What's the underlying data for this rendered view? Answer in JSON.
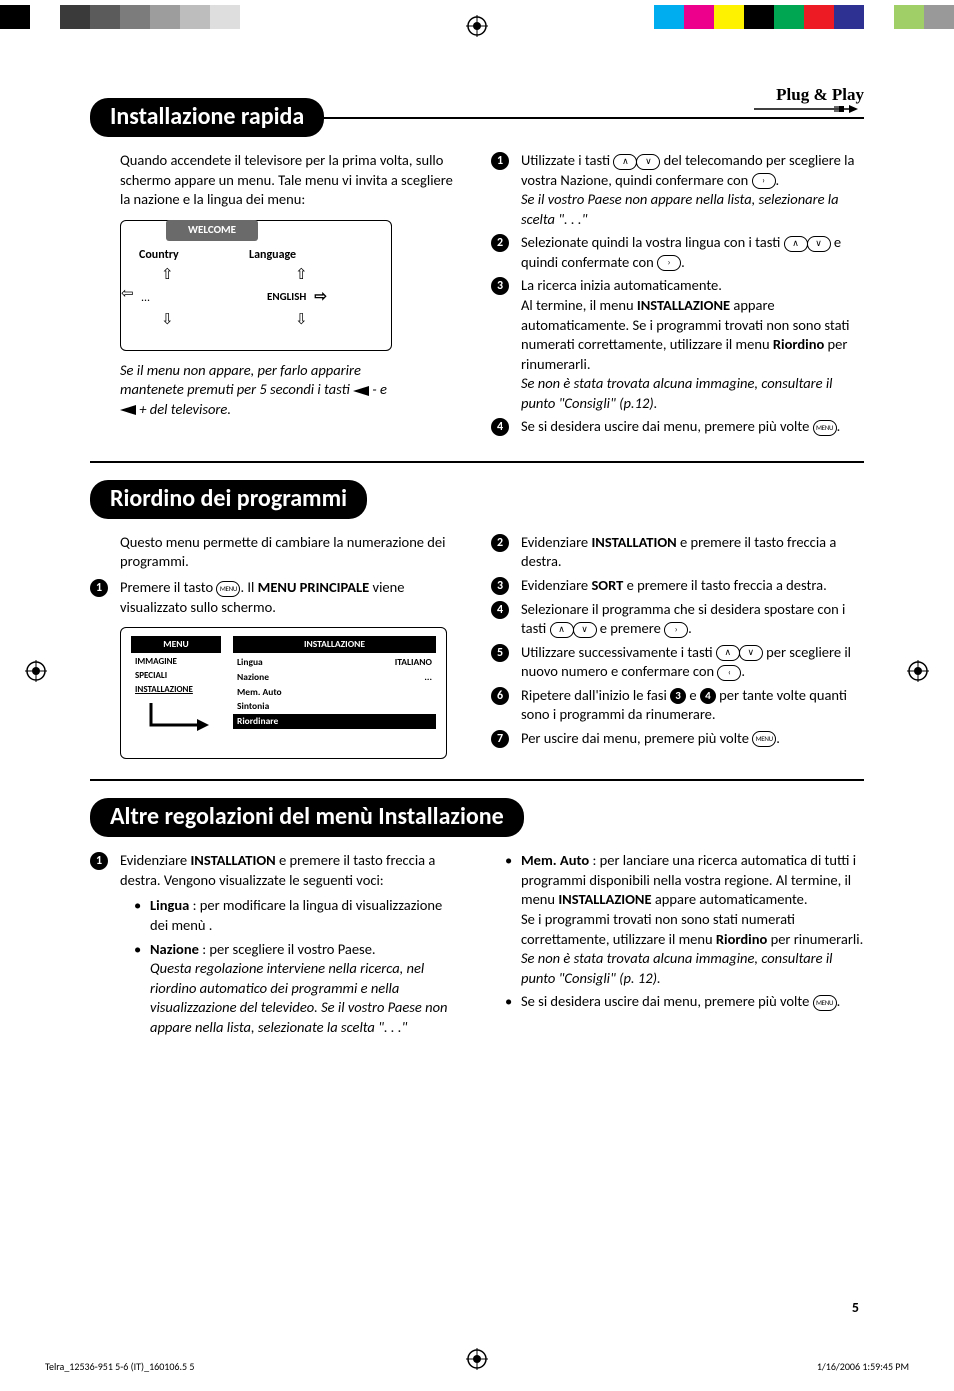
{
  "colorbar": {
    "left": [
      "#000000",
      "#ffffff",
      "#3a3a3a",
      "#5b5b5b",
      "#7c7c7c",
      "#9d9d9d",
      "#bdbdbd",
      "#dedede",
      "#ffffff",
      "#ffffff",
      "#ffffff"
    ],
    "right": [
      "#00aeef",
      "#ec008c",
      "#fff200",
      "#000000",
      "#00a651",
      "#ed1c24",
      "#2e3192",
      "#ffffff",
      "#a0cf67",
      "#999999"
    ]
  },
  "logo": {
    "text": "Plug & Play"
  },
  "sections": {
    "s1": {
      "title": "Installazione rapida"
    },
    "s2": {
      "title": "Riordino dei programmi"
    },
    "s3": {
      "title": "Altre regolazioni del menù Installazione"
    }
  },
  "s1": {
    "intro": "Quando accendete il televisore per la prima volta, sullo schermo appare un menu. Tale menu vi invita a scegliere la nazione e la lingua dei menu:",
    "tv": {
      "tab": "WELCOME",
      "country": "Country",
      "language": "Language",
      "english": "ENGLISH",
      "dots": "..."
    },
    "note_line1": "Se il menu non appare, per farlo apparire",
    "note_line2_a": "mantenete premuti per 5 secondi i tasti ",
    "note_line2_b": " - e",
    "note_line3_a": "",
    "note_line3_b": " + del televisore.",
    "r1": "Utilizzate i tasti ",
    "r1b": " del telecomando per scegliere la vostra Nazione, quindi confermare con ",
    "r1c": ".",
    "r1_note": "Se il vostro Paese non appare nella lista, selezionare la scelta \". . .\"",
    "r2a": "Selezionate quindi la vostra lingua con i tasti ",
    "r2b": " e quindi confermate con ",
    "r2c": ".",
    "r3a": "La ricerca inizia automaticamente.",
    "r3b": "Al termine, il menu ",
    "r3b_bold": "INSTALLAZIONE",
    "r3c": " appare automaticamente. Se i programmi trovati non sono stati numerati correttamente, utilizzare il menu ",
    "r3c_bold": "Riordino",
    "r3d": " per rinumerarli.",
    "r3_note": "Se non è stata trovata alcuna immagine, consultare il punto \"Consigli\" (p.12).",
    "r4": "Se si desidera uscire dai menu, premere più volte ",
    "r4b": "."
  },
  "s2": {
    "intro": "Questo menu permette di cambiare la numerazione dei programmi.",
    "l1a": "Premere il tasto ",
    "l1b": ". Il ",
    "l1_bold": "MENU PRINCIPALE",
    "l1c": " viene visualizzato sullo schermo.",
    "menubox": {
      "left_hdr": "MENU",
      "left_items": [
        "IMMAGINE",
        "SPECIALI",
        "INSTALLAZIONE"
      ],
      "right_hdr": "INSTALLAZIONE",
      "rows": [
        {
          "l": "Lingua",
          "r": "ITALIANO"
        },
        {
          "l": "Nazione",
          "r": "..."
        },
        {
          "l": "Mem. Auto",
          "r": ""
        },
        {
          "l": "Sintonia",
          "r": ""
        },
        {
          "l": "Riordinare",
          "r": ""
        }
      ]
    },
    "r2a": "Evidenziare ",
    "r2_bold": "INSTALLATION",
    "r2b": " e premere il tasto freccia a destra.",
    "r3a": "Evidenziare ",
    "r3_bold": "SORT",
    "r3b": " e premere il tasto freccia a destra.",
    "r4a": "Selezionare il programma che si desidera spostare con i tasti ",
    "r4b": " e premere ",
    "r4c": ".",
    "r5a": "Utilizzare successivamente i tasti ",
    "r5b": " per scegliere il nuovo numero e confermare con ",
    "r5c": ".",
    "r6a": "Ripetere dall'inizio le fasi ",
    "r6b": " e ",
    "r6c": " per tante volte quanti sono i programmi da rinumerare.",
    "r7a": "Per uscire dai menu, premere più volte ",
    "r7b": "."
  },
  "s3": {
    "l1a": "Evidenziare ",
    "l1_bold": "INSTALLATION",
    "l1b": " e premere il tasto freccia a destra. Vengono visualizzate le seguenti voci:",
    "b1_bold": "Lingua",
    "b1": " : per modificare la lingua di visualizzazione dei menù .",
    "b2_bold": "Nazione",
    "b2": " : per scegliere il vostro Paese.",
    "b2_note": "Questa regolazione interviene nella ricerca, nel riordino automatico dei programmi e nella visualizzazione del televideo. Se il vostro Paese non appare nella lista, selezionate la scelta \". . .\"",
    "rb1_bold": "Mem. Auto",
    "rb1a": " : per lanciare una ricerca automatica di tutti i programmi disponibili nella vostra regione. Al termine, il menu ",
    "rb1_bold2": "INSTALLAZIONE",
    "rb1b": " appare automaticamente.",
    "rb1c": "Se i programmi trovati non sono stati numerati correttamente, utilizzare il menu ",
    "rb1_bold3": "Riordino",
    "rb1d": " per rinumerarli.",
    "rb1_note": "Se non è stata trovata alcuna immagine, consultare il punto \"Consigli\" (p. 12).",
    "rb2a": "Se si desidera uscire dai menu, premere più volte ",
    "rb2b": "."
  },
  "page": {
    "num": "5"
  },
  "footer": {
    "left": "Telra_12536-951 5-6 (IT)_160106.5   5",
    "right": "1/16/2006   1:59:45 PM"
  }
}
